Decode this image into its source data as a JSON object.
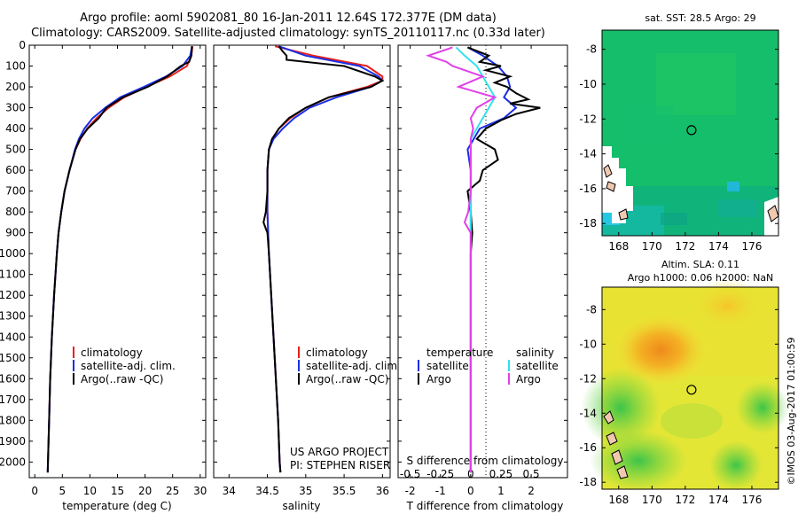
{
  "titles": {
    "line1": "Argo profile: aoml 5902081_80 16-Jan-2011 12.64S 172.377E (DM data)",
    "line2": "Climatology: CARS2009. Satellite-adjusted climatology: synTS_20110117.nc (0.33d later)"
  },
  "colors": {
    "climatology": "#e8201a",
    "satellite": "#1a2ee6",
    "argo": "#000000",
    "salinity_satellite": "#33e0ee",
    "salinity_argo": "#e040e8"
  },
  "chart_data": [
    {
      "type": "line",
      "name": "temperature",
      "xlabel": "temperature (deg C)",
      "ylabel": "",
      "xlim": [
        -1,
        31
      ],
      "ylim": [
        2075,
        0
      ],
      "xticks": [
        "0",
        "5",
        "10",
        "15",
        "20",
        "25",
        "30"
      ],
      "yticks": [
        "0",
        "100",
        "200",
        "300",
        "400",
        "500",
        "600",
        "700",
        "800",
        "900",
        "1000",
        "1100",
        "1200",
        "1300",
        "1400",
        "1500",
        "1600",
        "1700",
        "1800",
        "1900",
        "2000"
      ],
      "legend": [
        "climatology",
        "satellite-adj. clim.",
        "Argo(..raw -QC)"
      ],
      "series": [
        {
          "name": "climatology",
          "depth": [
            5,
            50,
            100,
            150,
            200,
            250,
            300,
            350,
            400,
            450,
            500,
            600,
            700,
            800,
            900,
            1000,
            1200,
            1400,
            1600,
            1800,
            2000,
            2050
          ],
          "values": [
            28.6,
            28.4,
            27.6,
            24.5,
            20.3,
            16.2,
            13.4,
            11.2,
            9.5,
            8.3,
            7.4,
            6.3,
            5.4,
            4.8,
            4.3,
            4.0,
            3.5,
            3.1,
            2.8,
            2.6,
            2.4,
            2.35
          ]
        },
        {
          "name": "satellite-adj. clim.",
          "depth": [
            5,
            50,
            100,
            150,
            200,
            250,
            300,
            350,
            400,
            450,
            500,
            600,
            700,
            800,
            900,
            1000,
            1200,
            1400,
            1600,
            1800,
            2000,
            2050
          ],
          "values": [
            28.5,
            28.2,
            26.8,
            23.8,
            19.8,
            15.5,
            12.8,
            10.5,
            9.0,
            8.0,
            7.3,
            6.3,
            5.4,
            4.8,
            4.3,
            4.0,
            3.5,
            3.1,
            2.8,
            2.6,
            2.4,
            2.35
          ]
        },
        {
          "name": "Argo(..raw -QC)",
          "depth": [
            5,
            50,
            80,
            100,
            150,
            200,
            250,
            300,
            350,
            400,
            450,
            500,
            600,
            700,
            800,
            900,
            1000,
            1200,
            1400,
            1600,
            1800,
            2000,
            2050
          ],
          "values": [
            28.5,
            28.4,
            28.0,
            26.5,
            24.0,
            20.5,
            16.0,
            13.0,
            11.6,
            9.6,
            8.2,
            7.4,
            6.3,
            5.4,
            4.8,
            4.3,
            4.0,
            3.5,
            3.1,
            2.8,
            2.6,
            2.4,
            2.35
          ]
        }
      ]
    },
    {
      "type": "line",
      "name": "salinity",
      "xlabel": "salinity",
      "xlim": [
        33.8,
        36.1
      ],
      "ylim": [
        2075,
        0
      ],
      "xticks": [
        "34",
        "34.5",
        "35",
        "35.5",
        "36"
      ],
      "legend": [
        "climatology",
        "satellite-adj. clim.",
        "Argo(..raw -QC)"
      ],
      "annotation": [
        "US ARGO PROJECT",
        "PI: STEPHEN RISER"
      ],
      "series": [
        {
          "name": "climatology",
          "depth": [
            5,
            50,
            100,
            150,
            170,
            200,
            250,
            300,
            350,
            400,
            450,
            500,
            600,
            700,
            800,
            900,
            1000,
            1200,
            1400,
            1600,
            1800,
            2000,
            2050
          ],
          "values": [
            34.6,
            35.1,
            35.8,
            36.0,
            36.0,
            35.8,
            35.3,
            35.0,
            34.8,
            34.65,
            34.57,
            34.52,
            34.5,
            34.5,
            34.5,
            34.51,
            34.52,
            34.55,
            34.58,
            34.61,
            34.64,
            34.66,
            34.67
          ]
        },
        {
          "name": "satellite-adj. clim.",
          "depth": [
            5,
            50,
            100,
            150,
            170,
            200,
            250,
            300,
            350,
            400,
            450,
            500,
            600,
            700,
            800,
            900,
            1000,
            1200,
            1400,
            1600,
            1800,
            2000,
            2050
          ],
          "values": [
            34.65,
            35.0,
            35.7,
            35.95,
            36.0,
            35.85,
            35.4,
            35.05,
            34.85,
            34.7,
            34.58,
            34.52,
            34.5,
            34.5,
            34.5,
            34.51,
            34.52,
            34.55,
            34.58,
            34.61,
            34.64,
            34.66,
            34.67
          ]
        },
        {
          "name": "Argo(..raw -QC)",
          "depth": [
            5,
            30,
            50,
            70,
            100,
            150,
            170,
            200,
            250,
            300,
            350,
            400,
            450,
            500,
            600,
            700,
            800,
            850,
            880,
            900,
            1000,
            1200,
            1400,
            1600,
            1800,
            2000,
            2050
          ],
          "values": [
            34.65,
            34.7,
            34.75,
            34.75,
            35.5,
            35.9,
            36.0,
            35.85,
            35.3,
            35.0,
            34.78,
            34.65,
            34.56,
            34.52,
            34.5,
            34.5,
            34.48,
            34.45,
            34.48,
            34.5,
            34.52,
            34.55,
            34.58,
            34.61,
            34.64,
            34.66,
            34.67
          ]
        }
      ]
    },
    {
      "type": "line",
      "name": "differences",
      "xlabel": "T difference from climatology",
      "xlabel_top": "S difference from climatology",
      "xlim": [
        -2.4,
        3.2
      ],
      "ylim": [
        2075,
        0
      ],
      "xticks": [
        "-2",
        "-1",
        "0",
        "1",
        "2"
      ],
      "xticks_s": [
        "-0.5",
        "-0.25",
        "0",
        "0.25",
        "0.5"
      ],
      "legend_title_t": "temperature",
      "legend_title_s": "salinity",
      "legend": [
        "satellite",
        "Argo",
        "satellite",
        "Argo"
      ],
      "series": [
        {
          "name": "T satellite",
          "depth": [
            10,
            50,
            100,
            150,
            200,
            250,
            300,
            350,
            400,
            450,
            500,
            600,
            700,
            800,
            900,
            1000,
            1200,
            1400,
            1600,
            1800,
            2000,
            2050
          ],
          "values": [
            -0.1,
            0.4,
            0.9,
            1.2,
            1.3,
            1.1,
            1.5,
            1.1,
            0.3,
            0.1,
            -0.1,
            0.0,
            0.0,
            0.0,
            0.0,
            0.0,
            0.0,
            0.0,
            0.0,
            0.0,
            0.0,
            0.0
          ]
        },
        {
          "name": "T Argo",
          "depth": [
            10,
            50,
            80,
            100,
            120,
            150,
            180,
            200,
            230,
            260,
            280,
            300,
            330,
            360,
            400,
            450,
            500,
            550,
            600,
            650,
            700,
            800,
            900,
            1000,
            1200,
            1400,
            1600,
            1800,
            2000,
            2050
          ],
          "values": [
            -0.1,
            0.6,
            0.3,
            1.0,
            0.5,
            1.3,
            0.8,
            1.2,
            1.5,
            1.9,
            1.3,
            2.3,
            1.5,
            1.0,
            0.5,
            0.2,
            0.8,
            0.9,
            0.4,
            0.3,
            -0.1,
            0.0,
            0.05,
            0.0,
            0.0,
            0.0,
            0.0,
            0.0,
            0.0,
            0.0
          ]
        },
        {
          "name": "S satellite",
          "depth": [
            10,
            50,
            100,
            150,
            200,
            250,
            300,
            350,
            400,
            450,
            500,
            600,
            700,
            800,
            900,
            1000,
            1200,
            1400,
            1600,
            1800,
            2000,
            2050
          ],
          "values": [
            -0.12,
            -0.05,
            0.05,
            0.1,
            0.15,
            0.2,
            0.15,
            0.1,
            0.05,
            0.0,
            0.0,
            0.0,
            0.0,
            0.0,
            0.0,
            0.0,
            0.0,
            0.0,
            0.0,
            0.0,
            0.0,
            0.0
          ]
        },
        {
          "name": "S Argo",
          "depth": [
            10,
            50,
            80,
            100,
            150,
            200,
            250,
            300,
            350,
            400,
            450,
            500,
            600,
            700,
            800,
            850,
            880,
            900,
            1000,
            1200,
            1400,
            1600,
            1800,
            2000,
            2050
          ],
          "values": [
            -0.15,
            -0.35,
            -0.2,
            -0.15,
            0.1,
            -0.1,
            0.2,
            0.05,
            0.0,
            0.02,
            0.0,
            0.0,
            0.0,
            0.0,
            -0.02,
            -0.05,
            -0.02,
            0.0,
            0.0,
            0.0,
            0.0,
            0.0,
            0.0,
            0.0,
            0.0
          ]
        }
      ]
    },
    {
      "type": "heatmap",
      "name": "sst_map",
      "title": "sat. SST: 28.5 Argo: 29",
      "xticks": [
        "168",
        "170",
        "172",
        "174",
        "176"
      ],
      "yticks": [
        "-8",
        "-10",
        "-12",
        "-14",
        "-16",
        "-18"
      ],
      "argo_position": [
        172.377,
        -12.64
      ]
    },
    {
      "type": "heatmap",
      "name": "sla_map",
      "title_line1": "Altim. SLA: 0.11",
      "title_line2": "Argo h1000: 0.06 h2000: NaN",
      "xticks": [
        "168",
        "170",
        "172",
        "174",
        "176"
      ],
      "yticks": [
        "-8",
        "-10",
        "-12",
        "-14",
        "-16",
        "-18"
      ],
      "argo_position": [
        172.377,
        -12.64
      ]
    }
  ],
  "footer": "©IMOS 03-Aug-2017 01:00:59"
}
